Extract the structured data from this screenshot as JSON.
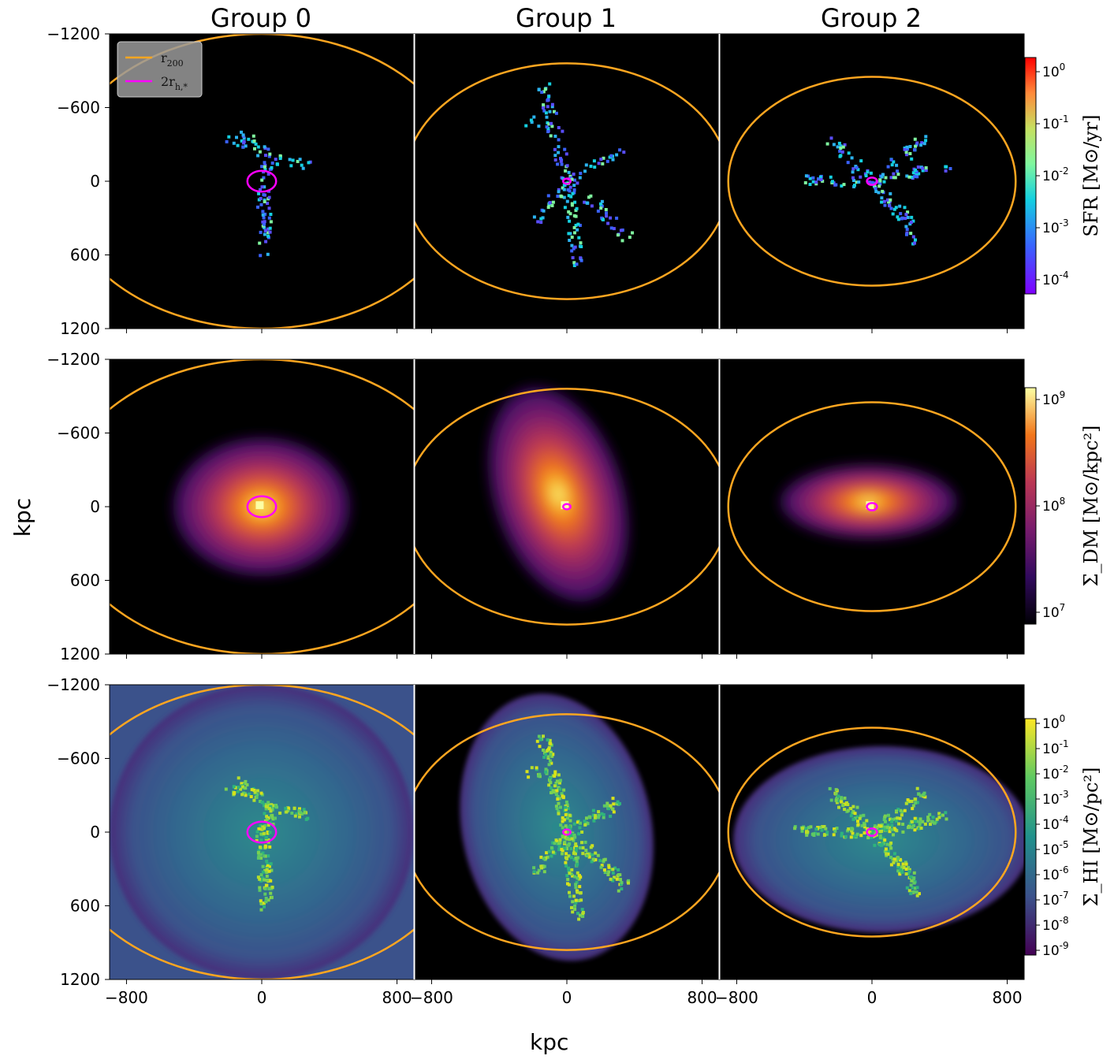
{
  "chart_data": {
    "type": "heatmap",
    "columns": [
      "Group 0",
      "Group 1",
      "Group 2"
    ],
    "xlabel": "kpc",
    "ylabel": "kpc",
    "x_ticks": [
      -800,
      0,
      800
    ],
    "y_ticks": [
      -1200,
      -600,
      0,
      600,
      1200
    ],
    "xlim": [
      -900,
      900
    ],
    "ylim": [
      -1200,
      1200
    ],
    "tick_labels_x": [
      "−800",
      "0",
      "800"
    ],
    "tick_labels_y": [
      "1200",
      "600",
      "0",
      "−600",
      "−1200"
    ],
    "legend": {
      "position": "top-left",
      "entries": [
        {
          "label": "r_200",
          "color": "#ffa620"
        },
        {
          "label": "2r_h,*",
          "color": "#ff00ff"
        }
      ]
    },
    "circles": {
      "r200_kpc": [
        1200,
        960,
        850
      ],
      "half_mass_2r_kpc": [
        85,
        22,
        30
      ]
    },
    "rows": [
      {
        "quantity": "SFR",
        "colorbar_label": "SFR [M⊙/yr]",
        "colormap": "rainbow",
        "colorbar_ticks": [
          "10^0",
          "10^-1",
          "10^-2",
          "10^-3",
          "10^-4"
        ],
        "colorbar_tick_values": [
          1,
          0.1,
          0.01,
          0.001,
          0.0001
        ]
      },
      {
        "quantity": "Sigma_DM",
        "colorbar_label": "Σ_DM [M⊙/kpc²]",
        "colormap": "inferno",
        "colorbar_ticks": [
          "10^9",
          "10^8",
          "10^7"
        ],
        "colorbar_tick_values": [
          1000000000,
          100000000,
          10000000
        ]
      },
      {
        "quantity": "Sigma_HI",
        "colorbar_label": "Σ_HI [M⊙/pc²]",
        "colormap": "viridis",
        "colorbar_ticks": [
          "10^0",
          "10^-1",
          "10^-2",
          "10^-3",
          "10^-4",
          "10^-5",
          "10^-6",
          "10^-7",
          "10^-8",
          "10^-9"
        ],
        "colorbar_tick_values": [
          1,
          0.1,
          0.01,
          0.001,
          0.0001,
          1e-05,
          1e-06,
          1e-07,
          1e-08,
          1e-09
        ]
      }
    ]
  }
}
